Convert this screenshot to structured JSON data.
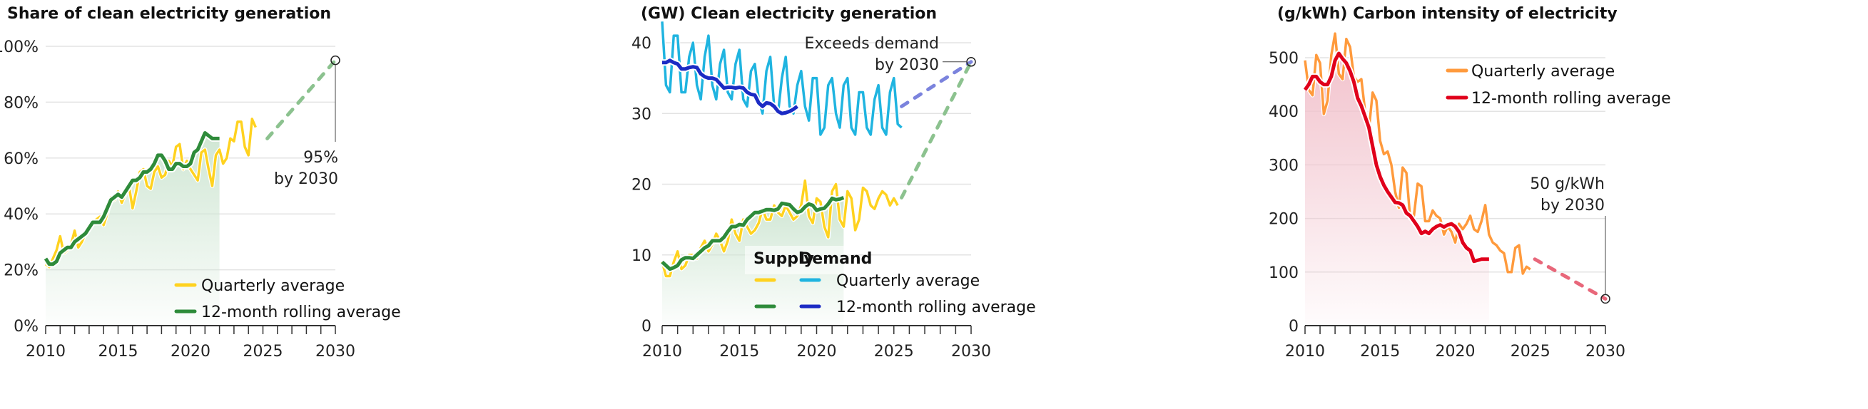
{
  "chart_data": [
    {
      "type": "line",
      "title": "Share of clean electricity generation",
      "ylim": [
        0,
        100
      ],
      "yticks": [
        0,
        20,
        40,
        60,
        80,
        100
      ],
      "ytick_labels": [
        "0%",
        "20%",
        "40%",
        "60%",
        "80%",
        "100%"
      ],
      "xlim": [
        2010,
        2030
      ],
      "xtick_labels": [
        "2010",
        "2015",
        "2020",
        "2025",
        "2030"
      ],
      "series": [
        {
          "name": "Quarterly average",
          "color": "#ffd21f",
          "start": 2010,
          "step": 0.25,
          "values": [
            22,
            21,
            24,
            27,
            32,
            26,
            27,
            29,
            34,
            28,
            30,
            33,
            36,
            37,
            38,
            39,
            36,
            40,
            46,
            45,
            48,
            44,
            47,
            50,
            42,
            48,
            55,
            56,
            50,
            49,
            55,
            57,
            53,
            54,
            59,
            57,
            64,
            65,
            56,
            59,
            56,
            54,
            52,
            62,
            63,
            56,
            50,
            61,
            63,
            58,
            60,
            67,
            66,
            73,
            73,
            64,
            61,
            74,
            71
          ]
        },
        {
          "name": "12-month rolling average",
          "color": "#2e8b3a",
          "start": 2010,
          "step": 0.25,
          "values": [
            24,
            22,
            22,
            23,
            26,
            27,
            28,
            28,
            30,
            31,
            32,
            33,
            35,
            37,
            37,
            37,
            39,
            42,
            45,
            46,
            47,
            46,
            48,
            50,
            52,
            52,
            53,
            55,
            55,
            56,
            58,
            61,
            61,
            59,
            56,
            56,
            58,
            58,
            57,
            57,
            58,
            62,
            63,
            66,
            69,
            68,
            67,
            67,
            67
          ]
        }
      ],
      "projections": [
        {
          "color": "#8cc28f",
          "from": [
            2025.3,
            67
          ],
          "to": [
            2030,
            95
          ]
        }
      ],
      "target": {
        "x": 2030,
        "y": 95,
        "label_line1": "95%",
        "label_line2": "by 2030"
      },
      "legend": {
        "placement": "bottom-right",
        "items": [
          "Quarterly average",
          "12-month rolling average"
        ]
      }
    },
    {
      "type": "line",
      "title": "(GW) Clean electricity generation",
      "ylim": [
        0,
        42
      ],
      "yticks": [
        0,
        10,
        20,
        30,
        40
      ],
      "ytick_labels": [
        "0",
        "10",
        "20",
        "30",
        "40"
      ],
      "xlim": [
        2010,
        2030
      ],
      "xtick_labels": [
        "2010",
        "2015",
        "2020",
        "2025",
        "2030"
      ],
      "series": [
        {
          "name": "Demand quarterly average",
          "color": "#1fb4e0",
          "start": 2010,
          "step": 0.25,
          "values": [
            43,
            34,
            33,
            41,
            41,
            33,
            33,
            38,
            40,
            34,
            32,
            38,
            41,
            34,
            32,
            37,
            39,
            33,
            32,
            37,
            39,
            32,
            31,
            36,
            37,
            32,
            30,
            36,
            38,
            31,
            30,
            35,
            38,
            31,
            30,
            34,
            36,
            31,
            29,
            35,
            35,
            27,
            28,
            34,
            35,
            30,
            28,
            34,
            35,
            28,
            27,
            33,
            33,
            28,
            27,
            32,
            34,
            28,
            27,
            33,
            35,
            28.5,
            28
          ]
        },
        {
          "name": "Demand 12-month rolling average",
          "color": "#1c2bc4",
          "start": 2010,
          "step": 0.25,
          "values": [
            37.2,
            37.2,
            37.5,
            37.2,
            37,
            36.3,
            36.3,
            36.5,
            36.6,
            36.5,
            35.6,
            35.2,
            35,
            35,
            34.8,
            34.2,
            33.6,
            33.7,
            33.7,
            33.6,
            33.7,
            33.6,
            33,
            32.7,
            32.6,
            31.5,
            31,
            31.5,
            31.4,
            31,
            30.3,
            30,
            30.1,
            30.3,
            30.6,
            31
          ]
        },
        {
          "name": "Supply quarterly average",
          "color": "#ffd21f",
          "start": 2010,
          "step": 0.25,
          "values": [
            9,
            7,
            7,
            9,
            10.5,
            8,
            8.5,
            10,
            10,
            9.5,
            11,
            12,
            10.5,
            11.5,
            13,
            12,
            10.5,
            12,
            15,
            13,
            12,
            15,
            14,
            13,
            13.5,
            14.5,
            16.5,
            15,
            15,
            17,
            16,
            15.5,
            17,
            16,
            15,
            15.5,
            17,
            20.5,
            15.5,
            14.5,
            18,
            17.5,
            14,
            12.5,
            19,
            20,
            15,
            14,
            19,
            18,
            13.5,
            15,
            19.5,
            19,
            17,
            16.5,
            18,
            19,
            18.5,
            17,
            18,
            17
          ]
        },
        {
          "name": "Supply 12-month rolling average",
          "color": "#2e8b3a",
          "start": 2010,
          "step": 0.25,
          "values": [
            9,
            8.5,
            8,
            8.2,
            8.5,
            9.3,
            9.6,
            9.6,
            9.5,
            10,
            10.5,
            11,
            11.3,
            12,
            12,
            12,
            12.5,
            13.3,
            14,
            14,
            14.3,
            14.2,
            15,
            15.5,
            16,
            16,
            16.2,
            16.4,
            16.4,
            16.3,
            16.5,
            17.3,
            17.2,
            17.1,
            16.5,
            16,
            16.2,
            16.8,
            17.2,
            17,
            16.3,
            16.5,
            16.6,
            17.2,
            18,
            17.8,
            17.9,
            18.1
          ]
        }
      ],
      "projections": [
        {
          "color": "#7b83dd",
          "from": [
            2025.5,
            31
          ],
          "to": [
            2030,
            37.3
          ]
        },
        {
          "color": "#8cc28f",
          "from": [
            2025.5,
            18.1
          ],
          "to": [
            2030,
            37.3
          ]
        }
      ],
      "target": {
        "x": 2030,
        "y": 37.3,
        "label_line1": "Exceeds demand",
        "label_line2": "by 2030"
      },
      "legend": {
        "placement": "bottom-center",
        "col_headers": [
          "Supply",
          "Demand"
        ],
        "items": [
          "Quarterly average",
          "12-month rolling average"
        ]
      }
    },
    {
      "type": "line",
      "title": "(g/kWh) Carbon intensity of electricity",
      "ylim": [
        0,
        500
      ],
      "yticks": [
        0,
        100,
        200,
        300,
        400,
        500
      ],
      "ytick_labels": [
        "0",
        "100",
        "200",
        "300",
        "400",
        "500"
      ],
      "xlim": [
        2010,
        2030
      ],
      "xtick_labels": [
        "2010",
        "2015",
        "2020",
        "2025",
        "2030"
      ],
      "series": [
        {
          "name": "Quarterly average",
          "color": "#ff9a3c",
          "start": 2010,
          "step": 0.25,
          "values": [
            495,
            440,
            430,
            505,
            490,
            395,
            420,
            505,
            545,
            470,
            460,
            535,
            520,
            465,
            455,
            460,
            400,
            365,
            435,
            420,
            345,
            320,
            325,
            300,
            250,
            220,
            295,
            285,
            200,
            205,
            265,
            260,
            195,
            195,
            215,
            205,
            200,
            170,
            185,
            175,
            155,
            190,
            180,
            190,
            205,
            180,
            175,
            195,
            225,
            170,
            155,
            150,
            140,
            135,
            100,
            100,
            145,
            150,
            97,
            110,
            105
          ]
        },
        {
          "name": "12-month rolling average",
          "color": "#e0001b",
          "start": 2010,
          "step": 0.25,
          "values": [
            440,
            450,
            465,
            465,
            455,
            450,
            450,
            465,
            495,
            508,
            498,
            490,
            475,
            455,
            425,
            410,
            390,
            370,
            335,
            300,
            278,
            262,
            250,
            240,
            230,
            229,
            225,
            210,
            205,
            195,
            185,
            172,
            176,
            172,
            180,
            185,
            188,
            184,
            188,
            190,
            185,
            175,
            155,
            145,
            140,
            120,
            122,
            124,
            124,
            124
          ]
        }
      ],
      "projections": [
        {
          "color": "#e8677a",
          "from": [
            2025.3,
            124
          ],
          "to": [
            2030,
            50
          ]
        }
      ],
      "target": {
        "x": 2030,
        "y": 50,
        "label_line1": "50 g/kWh",
        "label_line2": "by 2030"
      },
      "legend": {
        "placement": "top-right",
        "items": [
          "Quarterly average",
          "12-month rolling average"
        ]
      }
    }
  ]
}
